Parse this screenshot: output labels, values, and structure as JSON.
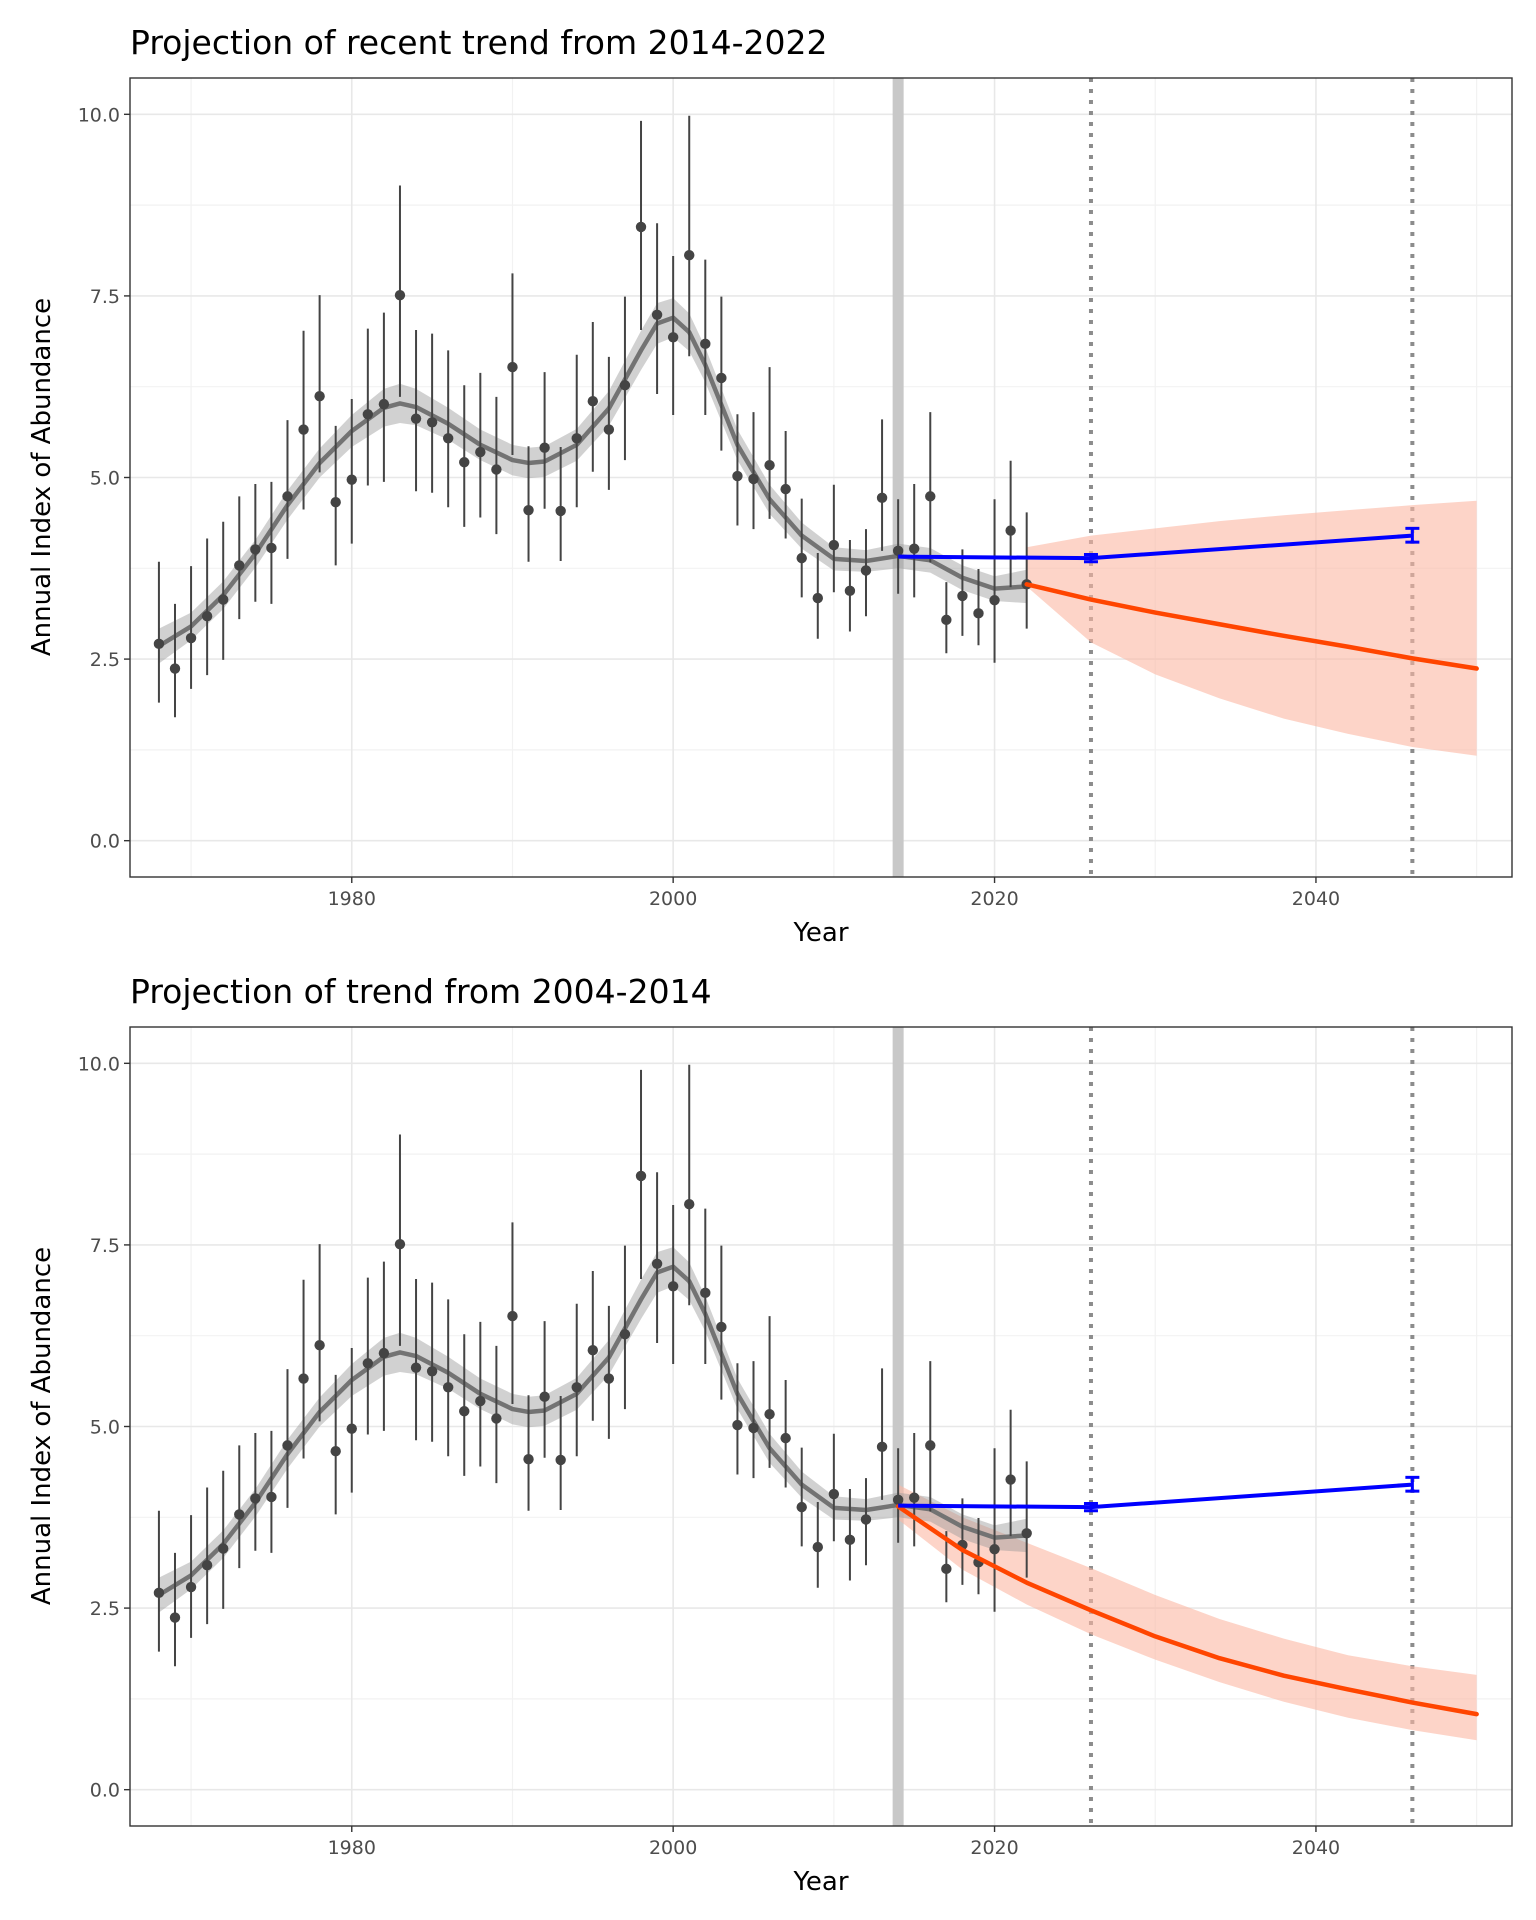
{
  "chart_data": [
    {
      "type": "line",
      "title": "Projection of recent trend from 2014-2022",
      "xlabel": "Year",
      "ylabel": "Annual Index of Abundance",
      "xlim": [
        1966.2,
        2052.2
      ],
      "ylim": [
        -0.5,
        10.5
      ],
      "x_ticks": [
        1980,
        2000,
        2020,
        2040
      ],
      "x_tick_labels": [
        "1980",
        "2000",
        "2020",
        "2040"
      ],
      "y_ticks": [
        0,
        2.5,
        5,
        7.5,
        10
      ],
      "y_tick_labels": [
        "0.0",
        "2.5",
        "5.0",
        "7.5",
        "10.0"
      ],
      "grid": true,
      "legend": "none",
      "reference_lines": {
        "start_year": 2014,
        "dotted_years": [
          2026,
          2046
        ]
      },
      "colors": {
        "points": "#444444",
        "smooth": "#737373",
        "smooth_band": "#999999",
        "projection": "#ff4500",
        "projection_band": "#fcb8a3",
        "target": "#0000ff",
        "start_line": "#c8c8c8",
        "dotted": "#8c8c8c"
      },
      "points": {
        "x": [
          1968,
          1969,
          1970,
          1971,
          1972,
          1973,
          1974,
          1975,
          1976,
          1977,
          1978,
          1979,
          1980,
          1981,
          1982,
          1983,
          1984,
          1985,
          1986,
          1987,
          1988,
          1989,
          1990,
          1991,
          1992,
          1993,
          1994,
          1995,
          1996,
          1997,
          1998,
          1999,
          2000,
          2001,
          2002,
          2003,
          2004,
          2005,
          2006,
          2007,
          2008,
          2009,
          2010,
          2011,
          2012,
          2013,
          2014,
          2015,
          2016,
          2017,
          2018,
          2019,
          2020,
          2021,
          2022
        ],
        "y": [
          2.71,
          2.37,
          2.79,
          3.09,
          3.32,
          3.79,
          4.01,
          4.03,
          4.74,
          5.66,
          6.12,
          4.66,
          4.97,
          5.87,
          6.01,
          7.51,
          5.81,
          5.76,
          5.54,
          5.21,
          5.35,
          5.11,
          6.52,
          4.55,
          5.41,
          4.54,
          5.54,
          6.05,
          5.66,
          6.27,
          8.45,
          7.24,
          6.93,
          8.06,
          6.84,
          6.37,
          5.02,
          4.98,
          5.17,
          4.84,
          3.89,
          3.34,
          4.07,
          3.44,
          3.72,
          4.72,
          3.99,
          4.02,
          4.74,
          3.04,
          3.37,
          3.13,
          3.31,
          4.27,
          3.53
        ],
        "lower": [
          1.9,
          1.7,
          2.09,
          2.28,
          2.49,
          3.05,
          3.29,
          3.26,
          3.88,
          4.56,
          5.07,
          3.79,
          4.09,
          4.89,
          4.94,
          6.11,
          4.81,
          4.79,
          4.59,
          4.32,
          4.45,
          4.22,
          5.31,
          3.84,
          4.57,
          3.85,
          4.59,
          5.08,
          4.83,
          5.24,
          7.03,
          6.15,
          5.86,
          6.67,
          5.86,
          5.37,
          4.34,
          4.29,
          4.43,
          4.16,
          3.35,
          2.78,
          3.42,
          2.88,
          3.09,
          3.99,
          3.4,
          3.35,
          3.83,
          2.58,
          2.82,
          2.69,
          2.45,
          3.49,
          2.92
        ],
        "upper": [
          3.84,
          3.26,
          3.78,
          4.16,
          4.39,
          4.74,
          4.91,
          4.94,
          5.79,
          7.02,
          7.51,
          5.71,
          6.08,
          7.05,
          7.27,
          9.02,
          7.03,
          6.98,
          6.75,
          6.27,
          6.44,
          6.11,
          7.81,
          5.43,
          6.45,
          5.42,
          6.69,
          7.14,
          6.66,
          7.49,
          9.91,
          8.5,
          8.05,
          9.98,
          8.0,
          7.49,
          5.87,
          5.9,
          6.52,
          5.64,
          4.71,
          3.96,
          4.9,
          4.14,
          4.29,
          5.8,
          4.7,
          4.91,
          5.9,
          3.56,
          4.01,
          3.74,
          4.7,
          5.23,
          4.52
        ]
      },
      "smooth": {
        "x": [
          1968,
          1970,
          1972,
          1974,
          1976,
          1978,
          1980,
          1982,
          1983,
          1984,
          1986,
          1988,
          1990,
          1991,
          1992,
          1994,
          1996,
          1998,
          1999,
          2000,
          2001,
          2002,
          2004,
          2006,
          2008,
          2010,
          2012,
          2014,
          2016,
          2018,
          2020,
          2022
        ],
        "y": [
          2.68,
          2.95,
          3.38,
          3.95,
          4.62,
          5.2,
          5.64,
          5.96,
          6.02,
          5.97,
          5.74,
          5.45,
          5.24,
          5.2,
          5.22,
          5.45,
          5.95,
          6.75,
          7.12,
          7.2,
          7.0,
          6.55,
          5.45,
          4.7,
          4.2,
          3.88,
          3.85,
          3.92,
          3.86,
          3.62,
          3.47,
          3.5
        ],
        "lower": [
          2.44,
          2.76,
          3.19,
          3.76,
          4.42,
          5.0,
          5.42,
          5.7,
          5.75,
          5.72,
          5.52,
          5.24,
          5.03,
          4.99,
          5.01,
          5.23,
          5.71,
          6.48,
          6.84,
          6.93,
          6.74,
          6.31,
          5.24,
          4.5,
          4.02,
          3.72,
          3.7,
          3.75,
          3.69,
          3.45,
          3.3,
          3.27
        ],
        "upper": [
          2.92,
          3.14,
          3.57,
          4.14,
          4.82,
          5.4,
          5.86,
          6.22,
          6.29,
          6.22,
          5.96,
          5.66,
          5.45,
          5.41,
          5.43,
          5.67,
          6.19,
          7.02,
          7.4,
          7.47,
          7.26,
          6.79,
          5.66,
          4.9,
          4.38,
          4.04,
          4.0,
          4.09,
          4.03,
          3.79,
          3.64,
          3.73
        ]
      },
      "projection": {
        "x": [
          2022,
          2026,
          2030,
          2034,
          2038,
          2042,
          2046,
          2050
        ],
        "y": [
          3.53,
          3.32,
          3.14,
          2.98,
          2.82,
          2.67,
          2.51,
          2.37
        ],
        "lower": [
          3.5,
          2.73,
          2.29,
          1.96,
          1.68,
          1.47,
          1.29,
          1.17
        ],
        "upper": [
          4.04,
          4.2,
          4.3,
          4.4,
          4.48,
          4.55,
          4.62,
          4.68
        ]
      },
      "target": {
        "x": [
          2014,
          2026,
          2046
        ],
        "y": [
          3.91,
          3.89,
          4.2
        ],
        "error_bars": [
          {
            "x": 2026,
            "lower": 3.84,
            "upper": 3.94
          },
          {
            "x": 2046,
            "lower": 4.11,
            "upper": 4.3
          }
        ]
      }
    },
    {
      "type": "line",
      "title": "Projection of trend from 2004-2014",
      "xlabel": "Year",
      "ylabel": "Annual Index of Abundance",
      "xlim": [
        1966.2,
        2052.2
      ],
      "ylim": [
        -0.5,
        10.5
      ],
      "x_ticks": [
        1980,
        2000,
        2020,
        2040
      ],
      "x_tick_labels": [
        "1980",
        "2000",
        "2020",
        "2040"
      ],
      "y_ticks": [
        0,
        2.5,
        5,
        7.5,
        10
      ],
      "y_tick_labels": [
        "0.0",
        "2.5",
        "5.0",
        "7.5",
        "10.0"
      ],
      "grid": true,
      "legend": "none",
      "reference_lines": {
        "start_year": 2014,
        "dotted_years": [
          2026,
          2046
        ]
      },
      "colors": {
        "points": "#444444",
        "smooth": "#737373",
        "smooth_band": "#999999",
        "projection": "#ff4500",
        "projection_band": "#fcb8a3",
        "target": "#0000ff",
        "start_line": "#c8c8c8",
        "dotted": "#8c8c8c"
      },
      "points": {
        "x": [
          1968,
          1969,
          1970,
          1971,
          1972,
          1973,
          1974,
          1975,
          1976,
          1977,
          1978,
          1979,
          1980,
          1981,
          1982,
          1983,
          1984,
          1985,
          1986,
          1987,
          1988,
          1989,
          1990,
          1991,
          1992,
          1993,
          1994,
          1995,
          1996,
          1997,
          1998,
          1999,
          2000,
          2001,
          2002,
          2003,
          2004,
          2005,
          2006,
          2007,
          2008,
          2009,
          2010,
          2011,
          2012,
          2013,
          2014,
          2015,
          2016,
          2017,
          2018,
          2019,
          2020,
          2021,
          2022
        ],
        "y": [
          2.71,
          2.37,
          2.79,
          3.09,
          3.32,
          3.79,
          4.01,
          4.03,
          4.74,
          5.66,
          6.12,
          4.66,
          4.97,
          5.87,
          6.01,
          7.51,
          5.81,
          5.76,
          5.54,
          5.21,
          5.35,
          5.11,
          6.52,
          4.55,
          5.41,
          4.54,
          5.54,
          6.05,
          5.66,
          6.27,
          8.45,
          7.24,
          6.93,
          8.06,
          6.84,
          6.37,
          5.02,
          4.98,
          5.17,
          4.84,
          3.89,
          3.34,
          4.07,
          3.44,
          3.72,
          4.72,
          3.99,
          4.02,
          4.74,
          3.04,
          3.37,
          3.13,
          3.31,
          4.27,
          3.53
        ],
        "lower": [
          1.9,
          1.7,
          2.09,
          2.28,
          2.49,
          3.05,
          3.29,
          3.26,
          3.88,
          4.56,
          5.07,
          3.79,
          4.09,
          4.89,
          4.94,
          6.11,
          4.81,
          4.79,
          4.59,
          4.32,
          4.45,
          4.22,
          5.31,
          3.84,
          4.57,
          3.85,
          4.59,
          5.08,
          4.83,
          5.24,
          7.03,
          6.15,
          5.86,
          6.67,
          5.86,
          5.37,
          4.34,
          4.29,
          4.43,
          4.16,
          3.35,
          2.78,
          3.42,
          2.88,
          3.09,
          3.99,
          3.4,
          3.35,
          3.83,
          2.58,
          2.82,
          2.69,
          2.45,
          3.49,
          2.92
        ],
        "upper": [
          3.84,
          3.26,
          3.78,
          4.16,
          4.39,
          4.74,
          4.91,
          4.94,
          5.79,
          7.02,
          7.51,
          5.71,
          6.08,
          7.05,
          7.27,
          9.02,
          7.03,
          6.98,
          6.75,
          6.27,
          6.44,
          6.11,
          7.81,
          5.43,
          6.45,
          5.42,
          6.69,
          7.14,
          6.66,
          7.49,
          9.91,
          8.5,
          8.05,
          9.98,
          8.0,
          7.49,
          5.87,
          5.9,
          6.52,
          5.64,
          4.71,
          3.96,
          4.9,
          4.14,
          4.29,
          5.8,
          4.7,
          4.91,
          5.9,
          3.56,
          4.01,
          3.74,
          4.7,
          5.23,
          4.52
        ]
      },
      "smooth": {
        "x": [
          1968,
          1970,
          1972,
          1974,
          1976,
          1978,
          1980,
          1982,
          1983,
          1984,
          1986,
          1988,
          1990,
          1991,
          1992,
          1994,
          1996,
          1998,
          1999,
          2000,
          2001,
          2002,
          2004,
          2006,
          2008,
          2010,
          2012,
          2014,
          2016,
          2018,
          2020,
          2022
        ],
        "y": [
          2.68,
          2.95,
          3.38,
          3.95,
          4.62,
          5.2,
          5.64,
          5.96,
          6.02,
          5.97,
          5.74,
          5.45,
          5.24,
          5.2,
          5.22,
          5.45,
          5.95,
          6.75,
          7.12,
          7.2,
          7.0,
          6.55,
          5.45,
          4.7,
          4.2,
          3.88,
          3.85,
          3.92,
          3.86,
          3.62,
          3.47,
          3.5
        ],
        "lower": [
          2.44,
          2.76,
          3.19,
          3.76,
          4.42,
          5.0,
          5.42,
          5.7,
          5.75,
          5.72,
          5.52,
          5.24,
          5.03,
          4.99,
          5.01,
          5.23,
          5.71,
          6.48,
          6.84,
          6.93,
          6.74,
          6.31,
          5.24,
          4.5,
          4.02,
          3.72,
          3.7,
          3.75,
          3.69,
          3.45,
          3.3,
          3.27
        ],
        "upper": [
          2.92,
          3.14,
          3.57,
          4.14,
          4.82,
          5.4,
          5.86,
          6.22,
          6.29,
          6.22,
          5.96,
          5.66,
          5.45,
          5.41,
          5.43,
          5.67,
          6.19,
          7.02,
          7.4,
          7.47,
          7.26,
          6.79,
          5.66,
          4.9,
          4.38,
          4.04,
          4.0,
          4.09,
          4.03,
          3.79,
          3.64,
          3.73
        ]
      },
      "projection": {
        "x": [
          2014,
          2018,
          2022,
          2026,
          2030,
          2034,
          2038,
          2042,
          2046,
          2050
        ],
        "y": [
          3.9,
          3.3,
          2.85,
          2.47,
          2.11,
          1.81,
          1.57,
          1.38,
          1.2,
          1.04
        ],
        "lower": [
          3.72,
          3.03,
          2.55,
          2.14,
          1.79,
          1.48,
          1.21,
          0.99,
          0.82,
          0.68
        ],
        "upper": [
          4.2,
          3.75,
          3.4,
          3.05,
          2.68,
          2.35,
          2.08,
          1.85,
          1.7,
          1.58
        ]
      },
      "target": {
        "x": [
          2014,
          2026,
          2046
        ],
        "y": [
          3.91,
          3.89,
          4.2
        ],
        "error_bars": [
          {
            "x": 2026,
            "lower": 3.84,
            "upper": 3.94
          },
          {
            "x": 2046,
            "lower": 4.11,
            "upper": 4.3
          }
        ]
      }
    }
  ]
}
